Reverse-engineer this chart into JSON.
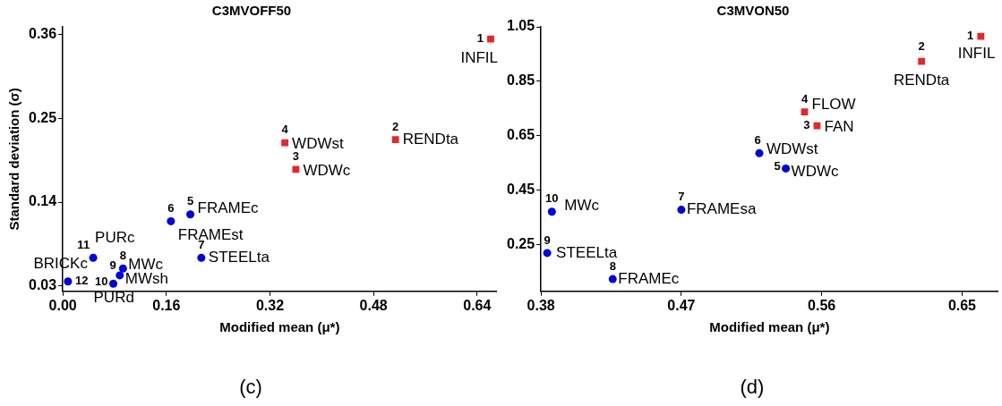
{
  "chart_data": [
    {
      "type": "scatter",
      "title": "C3MVOFF50",
      "xlabel": "Modified mean (μ*)",
      "ylabel": "Standard deviation (σ)",
      "xlim": [
        0,
        0.67
      ],
      "ylim": [
        0.023,
        0.37
      ],
      "xticks": [
        {
          "value": 0,
          "label": "0.00"
        },
        0.16,
        0.32,
        0.48,
        0.64
      ],
      "yticks": [
        0.03,
        0.14,
        0.25,
        0.36
      ],
      "grid": false,
      "legend": false,
      "series": [
        {
          "color": "#e8262a",
          "marker": "square",
          "x": [
            0.661,
            0.514,
            0.36,
            0.343
          ],
          "values": [
            0.354,
            0.222,
            0.183,
            0.218
          ]
        },
        {
          "color": "#0000e0",
          "marker": "circle",
          "x": [
            0.197,
            0.167,
            0.214,
            0.093,
            0.088,
            0.078,
            0.047,
            0.008
          ],
          "values": [
            0.124,
            0.115,
            0.067,
            0.053,
            0.044,
            0.033,
            0.067,
            0.036
          ]
        }
      ],
      "annotations": [
        {
          "text": "1",
          "x": 0.661,
          "y": 0.354
        },
        {
          "text": "INFIL",
          "x": 0.661,
          "y": 0.354
        },
        {
          "text": "2",
          "x": 0.514,
          "y": 0.222
        },
        {
          "text": "RENDta",
          "x": 0.514,
          "y": 0.222
        },
        {
          "text": "3",
          "x": 0.36,
          "y": 0.183
        },
        {
          "text": "WDWc",
          "x": 0.36,
          "y": 0.183
        },
        {
          "text": "4",
          "x": 0.343,
          "y": 0.218
        },
        {
          "text": "WDWst",
          "x": 0.343,
          "y": 0.218
        },
        {
          "text": "5",
          "x": 0.197,
          "y": 0.124
        },
        {
          "text": "FRAMEc",
          "x": 0.197,
          "y": 0.124
        },
        {
          "text": "6",
          "x": 0.167,
          "y": 0.115
        },
        {
          "text": "FRAMEst",
          "x": 0.167,
          "y": 0.115
        },
        {
          "text": "7",
          "x": 0.214,
          "y": 0.067
        },
        {
          "text": "STEELta",
          "x": 0.214,
          "y": 0.067
        },
        {
          "text": "8",
          "x": 0.093,
          "y": 0.053
        },
        {
          "text": "MWc",
          "x": 0.093,
          "y": 0.053
        },
        {
          "text": "9",
          "x": 0.088,
          "y": 0.044
        },
        {
          "text": "MWsh",
          "x": 0.088,
          "y": 0.044
        },
        {
          "text": "10",
          "x": 0.078,
          "y": 0.033
        },
        {
          "text": "PURd",
          "x": 0.078,
          "y": 0.033
        },
        {
          "text": "11",
          "x": 0.047,
          "y": 0.067
        },
        {
          "text": "PURc",
          "x": 0.047,
          "y": 0.067
        },
        {
          "text": "12",
          "x": 0.008,
          "y": 0.036
        },
        {
          "text": "BRICKc",
          "x": 0.008,
          "y": 0.036
        },
        "(c)"
      ]
    },
    {
      "type": "scatter",
      "title": "C3MVON50",
      "xlabel": "Modified mean (μ*)",
      "xlim": [
        0.38,
        0.673
      ],
      "ylim": [
        0.077,
        1.05
      ],
      "xticks": [
        0.38,
        0.47,
        0.56,
        0.65
      ],
      "yticks": [
        0.25,
        0.45,
        0.65,
        0.85,
        1.05
      ],
      "grid": false,
      "legend": false,
      "series": [
        {
          "color": "#e8262a",
          "marker": "square",
          "x": [
            0.662,
            0.624,
            0.557,
            0.549
          ],
          "values": [
            1.015,
            0.923,
            0.686,
            0.737
          ]
        },
        {
          "color": "#0000e0",
          "marker": "circle",
          "x": [
            0.537,
            0.52,
            0.47,
            0.426,
            0.384,
            0.387
          ],
          "values": [
            0.529,
            0.585,
            0.377,
            0.122,
            0.218,
            0.37
          ]
        }
      ],
      "annotations": [
        {
          "text": "1",
          "x": 0.662,
          "y": 1.015
        },
        {
          "text": "INFIL",
          "x": 0.662,
          "y": 1.015
        },
        {
          "text": "2",
          "x": 0.624,
          "y": 0.923
        },
        {
          "text": "RENDta",
          "x": 0.624,
          "y": 0.923
        },
        {
          "text": "3",
          "x": 0.557,
          "y": 0.686
        },
        {
          "text": "FAN",
          "x": 0.557,
          "y": 0.686
        },
        {
          "text": "4",
          "x": 0.549,
          "y": 0.737
        },
        {
          "text": "FLOW",
          "x": 0.549,
          "y": 0.737
        },
        {
          "text": "5",
          "x": 0.537,
          "y": 0.529
        },
        {
          "text": "WDWc",
          "x": 0.537,
          "y": 0.529
        },
        {
          "text": "6",
          "x": 0.52,
          "y": 0.585
        },
        {
          "text": "WDWst",
          "x": 0.52,
          "y": 0.585
        },
        {
          "text": "7",
          "x": 0.47,
          "y": 0.377
        },
        {
          "text": "FRAMEsa",
          "x": 0.47,
          "y": 0.377
        },
        {
          "text": "8",
          "x": 0.426,
          "y": 0.122
        },
        {
          "text": "FRAMEc",
          "x": 0.426,
          "y": 0.122
        },
        {
          "text": "9",
          "x": 0.384,
          "y": 0.218
        },
        {
          "text": "STEELta",
          "x": 0.384,
          "y": 0.218
        },
        {
          "text": "10",
          "x": 0.387,
          "y": 0.37
        },
        {
          "text": "MWc",
          "x": 0.387,
          "y": 0.37
        },
        "(d)"
      ]
    }
  ]
}
